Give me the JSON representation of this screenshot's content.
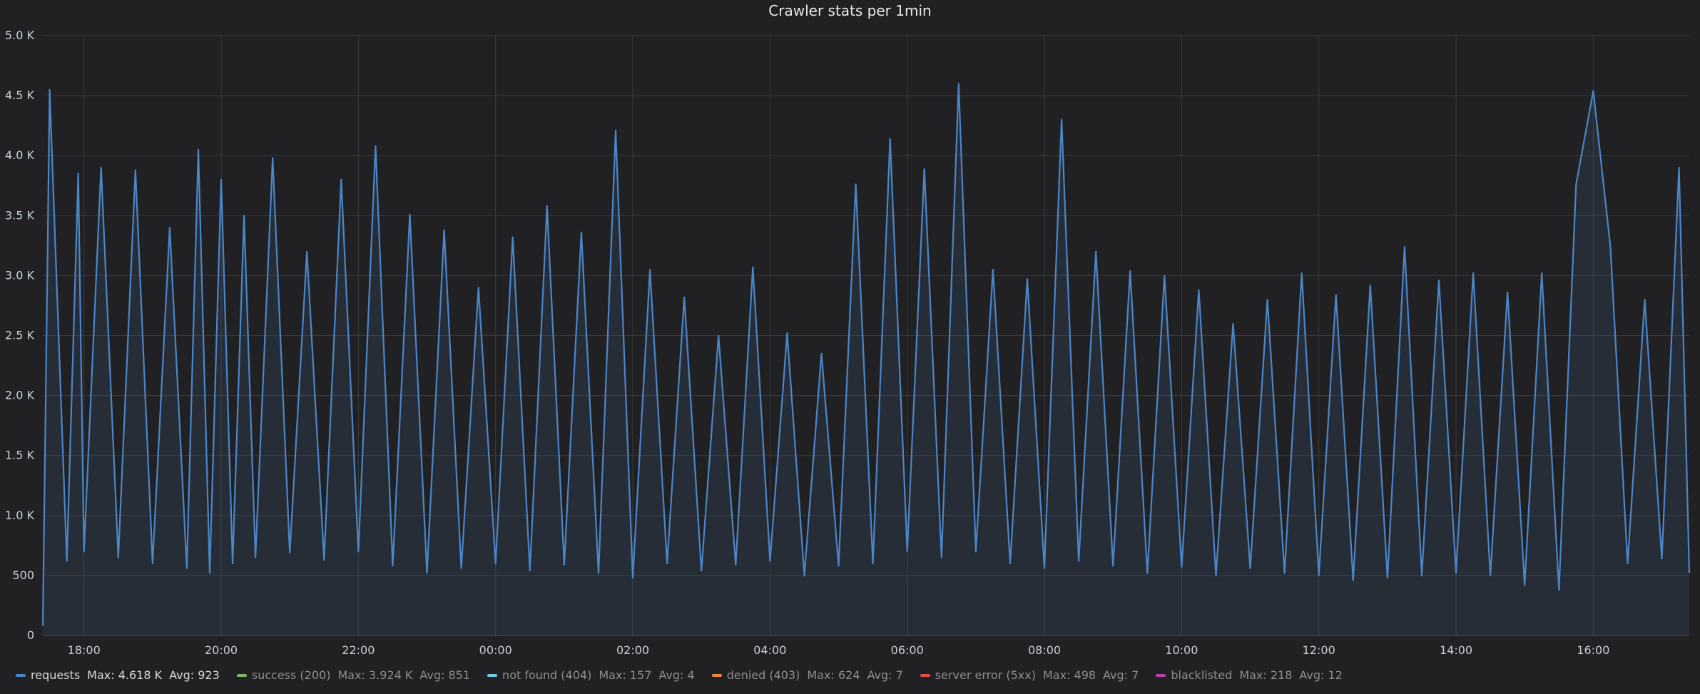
{
  "chart_data": {
    "type": "area",
    "title": "Crawler stats per 1min",
    "xlabel": "",
    "ylabel": "",
    "x_domain": [
      "17:24",
      "17:24 (+1 day)"
    ],
    "x_ticks": [
      "18:00",
      "20:00",
      "22:00",
      "00:00",
      "02:00",
      "04:00",
      "06:00",
      "08:00",
      "10:00",
      "12:00",
      "14:00",
      "16:00"
    ],
    "y_ticks": [
      "0",
      "500",
      "1.0 K",
      "1.5 K",
      "2.0 K",
      "2.5 K",
      "3.0 K",
      "3.5 K",
      "4.0 K",
      "4.5 K",
      "5.0 K"
    ],
    "ylim": [
      0,
      5000
    ],
    "grid": true,
    "legend_position": "bottom",
    "series": [
      {
        "name": "requests",
        "color": "#4a86c8",
        "max": "Max: 4.618 K",
        "avg": "Avg: 923",
        "time": [
          "17:24",
          "17:30",
          "17:45",
          "17:55",
          "18:00",
          "18:15",
          "18:30",
          "18:45",
          "19:00",
          "19:15",
          "19:30",
          "19:40",
          "19:50",
          "20:00",
          "20:10",
          "20:20",
          "20:30",
          "20:45",
          "21:00",
          "21:15",
          "21:30",
          "21:45",
          "22:00",
          "22:15",
          "22:30",
          "22:45",
          "23:00",
          "23:15",
          "23:30",
          "23:45",
          "00:00",
          "00:15",
          "00:30",
          "00:45",
          "01:00",
          "01:15",
          "01:30",
          "01:45",
          "02:00",
          "02:15",
          "02:30",
          "02:45",
          "03:00",
          "03:15",
          "03:30",
          "03:45",
          "04:00",
          "04:15",
          "04:30",
          "04:45",
          "05:00",
          "05:15",
          "05:30",
          "05:45",
          "06:00",
          "06:15",
          "06:30",
          "06:45",
          "07:00",
          "07:15",
          "07:30",
          "07:45",
          "08:00",
          "08:15",
          "08:30",
          "08:45",
          "09:00",
          "09:15",
          "09:30",
          "09:45",
          "10:00",
          "10:15",
          "10:30",
          "10:45",
          "11:00",
          "11:15",
          "11:30",
          "11:45",
          "12:00",
          "12:15",
          "12:30",
          "12:45",
          "13:00",
          "13:15",
          "13:30",
          "13:45",
          "14:00",
          "14:15",
          "14:30",
          "14:45",
          "15:00",
          "15:15",
          "15:30",
          "15:45",
          "16:00",
          "16:15",
          "16:30",
          "16:45",
          "17:00",
          "17:15",
          "17:24"
        ],
        "values": [
          80,
          4550,
          620,
          3850,
          700,
          3900,
          650,
          3880,
          600,
          3400,
          560,
          4050,
          520,
          3800,
          600,
          3500,
          650,
          3980,
          690,
          3200,
          630,
          3800,
          700,
          4080,
          580,
          3510,
          520,
          3380,
          560,
          2900,
          600,
          3320,
          540,
          3580,
          590,
          3360,
          520,
          4210,
          480,
          3050,
          600,
          2820,
          540,
          2500,
          590,
          3070,
          620,
          2520,
          500,
          2350,
          580,
          3760,
          600,
          4140,
          700,
          3890,
          650,
          4600,
          700,
          3050,
          600,
          2970,
          560,
          4300,
          620,
          3200,
          580,
          3040,
          520,
          3000,
          570,
          2880,
          500,
          2600,
          560,
          2800,
          520,
          3020,
          500,
          2840,
          460,
          2920,
          480,
          3240,
          500,
          2960,
          520,
          3020,
          500,
          2860,
          420,
          3020,
          380,
          3760,
          4540,
          3240,
          600,
          2800,
          640,
          3900,
          520
        ]
      },
      {
        "name": "success (200)",
        "color": "#7eb26d",
        "max": "Max: 3.924 K",
        "avg": "Avg: 851"
      },
      {
        "name": "not found (404)",
        "color": "#6ed0e0",
        "max": "Max: 157",
        "avg": "Avg: 4"
      },
      {
        "name": "denied (403)",
        "color": "#ef843c",
        "max": "Max: 624",
        "avg": "Avg: 7"
      },
      {
        "name": "server error (5xx)",
        "color": "#e24d42",
        "max": "Max: 498",
        "avg": "Avg: 7"
      },
      {
        "name": "blacklisted",
        "color": "#ba43a9",
        "max": "Max: 218",
        "avg": "Avg: 12"
      }
    ]
  }
}
